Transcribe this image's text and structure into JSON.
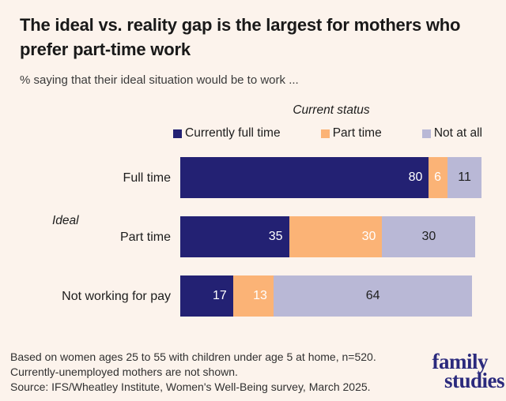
{
  "title": "The ideal vs. reality gap is the largest for mothers who prefer part-time work",
  "subtitle": "% saying that their ideal situation would be to work ...",
  "axis_label": "Ideal",
  "chart_data": {
    "type": "bar",
    "orientation": "horizontal",
    "stacked": true,
    "unit": "percent",
    "legend_title": "Current status",
    "legend_position": "top",
    "categories": [
      "Full time",
      "Part time",
      "Not working for pay"
    ],
    "series": [
      {
        "name": "Currently full time",
        "color": "#232173",
        "values": [
          80,
          35,
          17
        ]
      },
      {
        "name": "Part time",
        "color": "#FBB376",
        "values": [
          6,
          30,
          13
        ]
      },
      {
        "name": "Not at all",
        "color": "#B9B8D6",
        "values": [
          11,
          30,
          64
        ]
      }
    ],
    "value_labels_shown": true,
    "xlim": [
      0,
      100
    ]
  },
  "footer": {
    "line1": "Based on women ages 25 to 55 with children under age 5 at home, n=520.",
    "line2": "Currently-unemployed mothers are not shown.",
    "line3": "Source: IFS/Wheatley Institute, Women's Well-Being survey, March 2025."
  },
  "logo": {
    "line1": "family",
    "line2": "studies"
  },
  "colors": {
    "background": "#FCF3EC",
    "navy": "#232173",
    "orange": "#FBB376",
    "lavender": "#B9B8D6",
    "logo": "#2B2A7D"
  }
}
